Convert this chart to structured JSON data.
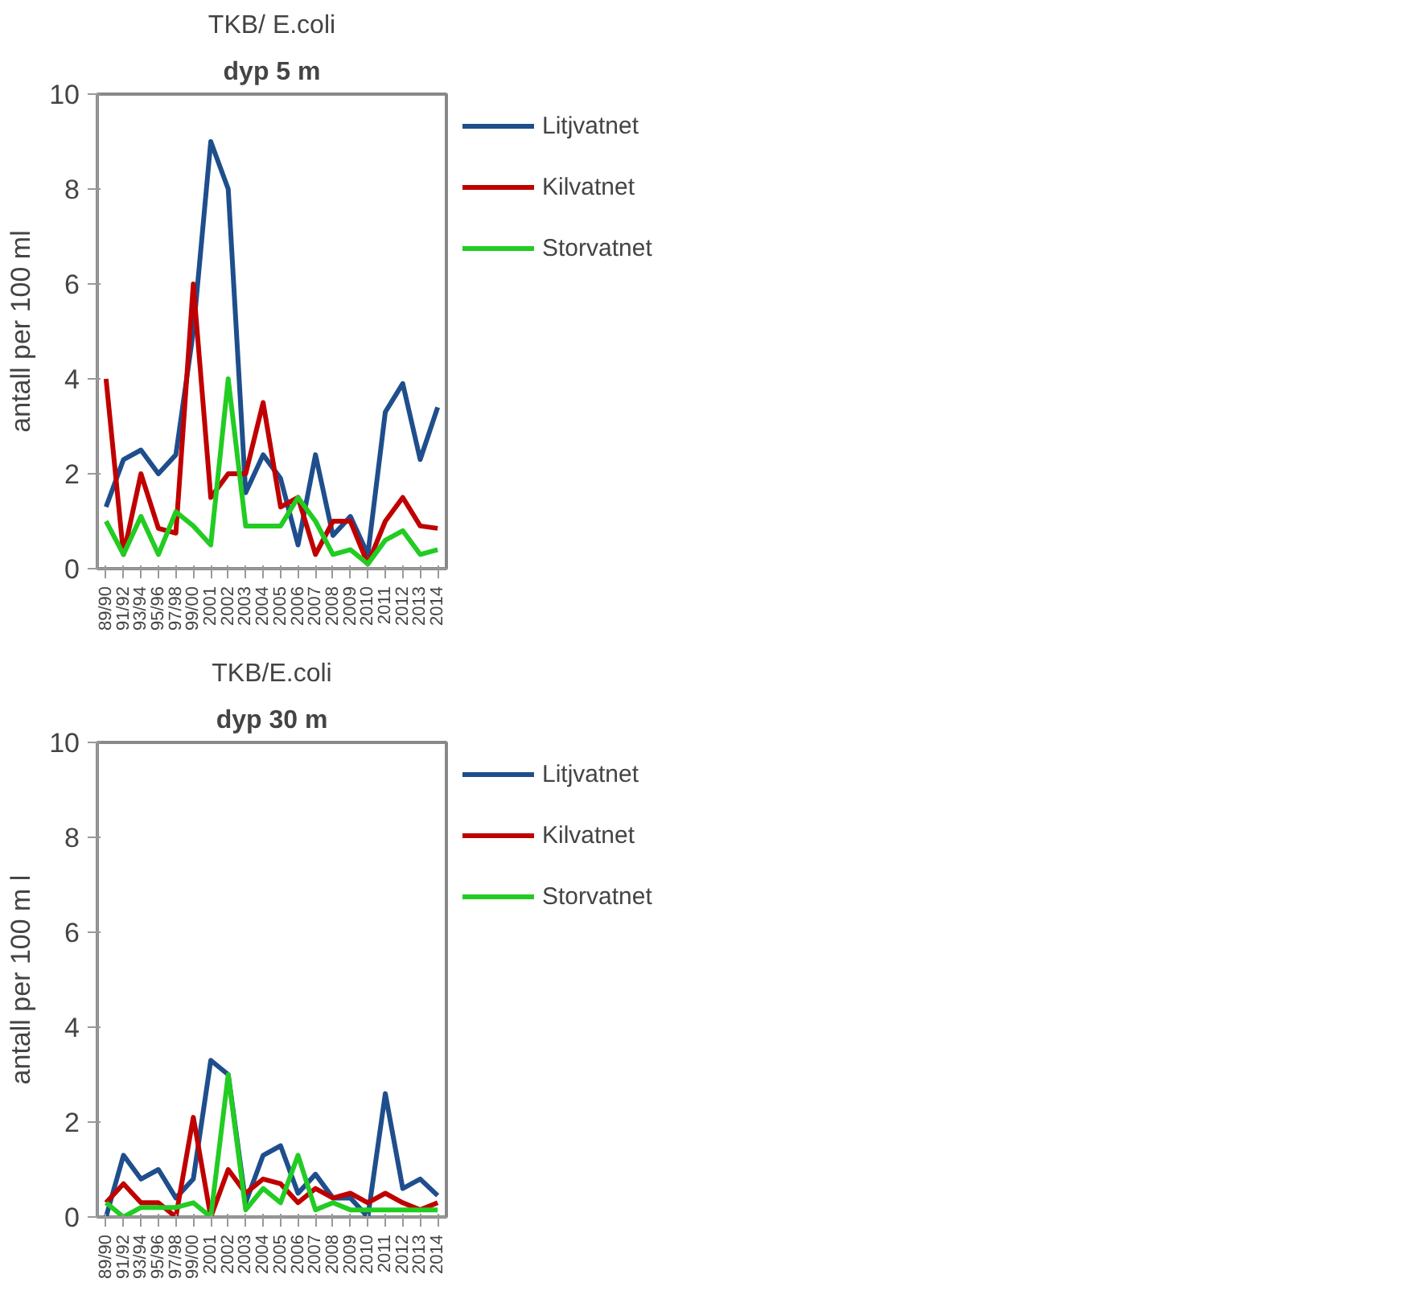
{
  "chart_data": [
    {
      "type": "line",
      "title": "TKB/ E.coli",
      "subtitle": "dyp 5 m",
      "ylabel": "antall per 100 ml",
      "categories": [
        "89/90",
        "91/92",
        "93/94",
        "95/96",
        "97/98",
        "99/00",
        "2001",
        "2002",
        "2003",
        "2004",
        "2005",
        "2006",
        "2007",
        "2008",
        "2009",
        "2010",
        "2011",
        "2012",
        "2013",
        "2014"
      ],
      "ylim": [
        0,
        10
      ],
      "yticks": [
        0,
        2,
        4,
        6,
        8,
        10
      ],
      "grid": false,
      "legend": "right",
      "marker": "none",
      "line_style": "solid",
      "series": [
        {
          "name": "Litjvatnet",
          "color": "#1f4e8c",
          "values": [
            1.3,
            2.3,
            2.5,
            2.0,
            2.4,
            5.0,
            9,
            8,
            1.6,
            2.4,
            1.9,
            0.5,
            2.4,
            0.7,
            1.1,
            0.3,
            3.3,
            3.9,
            2.3,
            3.4
          ]
        },
        {
          "name": "Kilvatnet",
          "color": "#c00000",
          "values": [
            4,
            0.3,
            2,
            0.85,
            0.75,
            6,
            1.5,
            2,
            2,
            3.5,
            1.3,
            1.5,
            0.3,
            1,
            1,
            0.1,
            1,
            1.5,
            0.9,
            0.85
          ]
        },
        {
          "name": "Storvatnet",
          "color": "#22cc22",
          "values": [
            1,
            0.3,
            1.1,
            0.3,
            1.2,
            0.9,
            0.5,
            4,
            0.9,
            0.9,
            0.9,
            1.5,
            1,
            0.3,
            0.4,
            0.1,
            0.6,
            0.8,
            0.3,
            0.4
          ]
        }
      ]
    },
    {
      "type": "line",
      "title": "TKB/E.coli",
      "subtitle": "dyp 30 m",
      "ylabel": "antall per 100 m l",
      "categories": [
        "89/90",
        "91/92",
        "93/94",
        "95/96",
        "97/98",
        "99/00",
        "2001",
        "2002",
        "2003",
        "2004",
        "2005",
        "2006",
        "2007",
        "2008",
        "2009",
        "2010",
        "2011",
        "2012",
        "2013",
        "2014"
      ],
      "ylim": [
        0,
        10
      ],
      "yticks": [
        0,
        2,
        4,
        6,
        8,
        10
      ],
      "grid": false,
      "legend": "right",
      "marker": "none",
      "line_style": "solid",
      "series": [
        {
          "name": "Litjvatnet",
          "color": "#1f4e8c",
          "values": [
            0,
            1.3,
            0.8,
            1.0,
            0.4,
            0.8,
            3.3,
            3.0,
            0.3,
            1.3,
            1.5,
            0.5,
            0.9,
            0.4,
            0.4,
            0,
            2.6,
            0.6,
            0.8,
            0.45
          ]
        },
        {
          "name": "Kilvatnet",
          "color": "#c00000",
          "values": [
            0.3,
            0.7,
            0.3,
            0.3,
            0,
            2.1,
            0,
            1.0,
            0.5,
            0.8,
            0.7,
            0.3,
            0.6,
            0.4,
            0.5,
            0.3,
            0.5,
            0.3,
            0.15,
            0.3
          ]
        },
        {
          "name": "Storvatnet",
          "color": "#22cc22",
          "values": [
            0.3,
            0,
            0.2,
            0.2,
            0.2,
            0.3,
            0,
            3.0,
            0.15,
            0.6,
            0.3,
            1.3,
            0.15,
            0.3,
            0.15,
            0.15,
            0.15,
            0.15,
            0.15,
            0.15
          ]
        }
      ]
    }
  ]
}
